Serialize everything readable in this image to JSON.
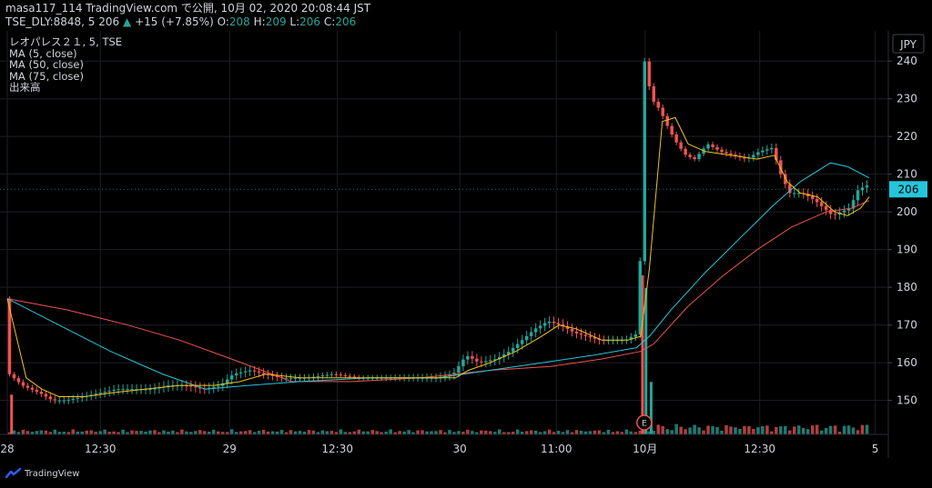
{
  "header": {
    "line1": "masa117_114 TradingView.com で公開, 10月 02, 2020 20:08:44 JST",
    "symbol": "TSE_DLY:8848, 5",
    "last": "206",
    "arrow": "▲",
    "change": "+15 (+7.85%)",
    "o_label": "O:",
    "o_val": "208",
    "h_label": "H:",
    "h_val": "209",
    "l_label": "L:",
    "l_val": "206",
    "c_label": "C:",
    "c_val": "206"
  },
  "legend": {
    "title": "レオパレス２１, 5, TSE",
    "ma5": "MA (5, close)",
    "ma50": "MA (50, close)",
    "ma75": "MA (75, close)",
    "volume": "出来高"
  },
  "axis": {
    "currency": "JPY",
    "price_tag": "206"
  },
  "footer": {
    "brand": "TradingView"
  },
  "colors": {
    "up": "#26a69a",
    "down": "#ef5350",
    "ma5": "#f0c419",
    "ma50": "#26c6da",
    "ma75": "#ef5350",
    "grid": "#1c1f27",
    "tag_bg": "#26c6da"
  },
  "chart_data": {
    "type": "candlestick",
    "y_ticks": [
      150,
      160,
      170,
      180,
      190,
      200,
      210,
      220,
      230,
      240
    ],
    "y_range": [
      141,
      248
    ],
    "x_ticks": [
      {
        "label": "28",
        "t": 0
      },
      {
        "label": "12:30",
        "t": 0.108
      },
      {
        "label": "29",
        "t": 0.258
      },
      {
        "label": "12:30",
        "t": 0.383
      },
      {
        "label": "30",
        "t": 0.525
      },
      {
        "label": "11:00",
        "t": 0.637
      },
      {
        "label": "10月",
        "t": 0.74
      },
      {
        "label": "12:30",
        "t": 0.873
      },
      {
        "label": "5",
        "t": 1.007
      }
    ],
    "earnings_marker": "E",
    "price_path": [
      [
        0,
        177
      ],
      [
        0.005,
        157
      ],
      [
        0.02,
        154
      ],
      [
        0.04,
        152
      ],
      [
        0.055,
        150
      ],
      [
        0.07,
        150
      ],
      [
        0.09,
        151
      ],
      [
        0.11,
        152
      ],
      [
        0.13,
        153
      ],
      [
        0.15,
        153
      ],
      [
        0.17,
        153
      ],
      [
        0.19,
        154
      ],
      [
        0.21,
        154
      ],
      [
        0.23,
        153
      ],
      [
        0.25,
        154
      ],
      [
        0.265,
        157
      ],
      [
        0.285,
        158
      ],
      [
        0.3,
        157
      ],
      [
        0.32,
        156
      ],
      [
        0.35,
        156
      ],
      [
        0.38,
        157
      ],
      [
        0.41,
        156
      ],
      [
        0.44,
        156
      ],
      [
        0.47,
        156
      ],
      [
        0.5,
        156
      ],
      [
        0.52,
        157
      ],
      [
        0.535,
        162
      ],
      [
        0.55,
        160
      ],
      [
        0.57,
        161
      ],
      [
        0.585,
        163
      ],
      [
        0.6,
        166
      ],
      [
        0.615,
        169
      ],
      [
        0.63,
        171
      ],
      [
        0.645,
        170
      ],
      [
        0.66,
        168
      ],
      [
        0.675,
        167
      ],
      [
        0.69,
        166
      ],
      [
        0.705,
        166
      ],
      [
        0.72,
        166
      ],
      [
        0.735,
        168
      ],
      [
        0.742,
        240
      ],
      [
        0.75,
        230
      ],
      [
        0.76,
        227
      ],
      [
        0.77,
        222
      ],
      [
        0.78,
        218
      ],
      [
        0.79,
        215
      ],
      [
        0.8,
        214
      ],
      [
        0.815,
        218
      ],
      [
        0.83,
        216
      ],
      [
        0.845,
        215
      ],
      [
        0.86,
        214
      ],
      [
        0.875,
        216
      ],
      [
        0.89,
        217
      ],
      [
        0.9,
        210
      ],
      [
        0.91,
        205
      ],
      [
        0.925,
        205
      ],
      [
        0.94,
        203
      ],
      [
        0.95,
        201
      ],
      [
        0.96,
        199
      ],
      [
        0.97,
        200
      ],
      [
        0.98,
        201
      ],
      [
        0.99,
        206
      ],
      [
        1.0,
        207
      ]
    ],
    "ma5": [
      [
        0,
        177
      ],
      [
        0.022,
        156
      ],
      [
        0.04,
        153
      ],
      [
        0.06,
        151
      ],
      [
        0.09,
        151
      ],
      [
        0.12,
        152
      ],
      [
        0.16,
        153
      ],
      [
        0.2,
        154
      ],
      [
        0.24,
        154
      ],
      [
        0.27,
        155
      ],
      [
        0.3,
        157
      ],
      [
        0.34,
        156
      ],
      [
        0.4,
        156
      ],
      [
        0.46,
        156
      ],
      [
        0.52,
        156
      ],
      [
        0.535,
        158
      ],
      [
        0.56,
        160
      ],
      [
        0.59,
        163
      ],
      [
        0.62,
        167
      ],
      [
        0.64,
        170
      ],
      [
        0.66,
        169
      ],
      [
        0.69,
        166
      ],
      [
        0.72,
        166
      ],
      [
        0.735,
        167
      ],
      [
        0.745,
        185
      ],
      [
        0.76,
        224
      ],
      [
        0.775,
        225
      ],
      [
        0.79,
        218
      ],
      [
        0.81,
        216
      ],
      [
        0.84,
        215
      ],
      [
        0.87,
        214
      ],
      [
        0.89,
        215
      ],
      [
        0.905,
        208
      ],
      [
        0.92,
        205
      ],
      [
        0.94,
        204
      ],
      [
        0.96,
        200
      ],
      [
        0.975,
        199
      ],
      [
        0.99,
        201
      ],
      [
        1.0,
        204
      ]
    ],
    "ma50": [
      [
        0,
        177
      ],
      [
        0.06,
        170
      ],
      [
        0.12,
        163
      ],
      [
        0.18,
        157
      ],
      [
        0.23,
        153
      ],
      [
        0.28,
        154
      ],
      [
        0.34,
        155
      ],
      [
        0.42,
        156
      ],
      [
        0.5,
        156
      ],
      [
        0.56,
        158
      ],
      [
        0.62,
        160
      ],
      [
        0.68,
        162
      ],
      [
        0.73,
        164
      ],
      [
        0.745,
        167
      ],
      [
        0.77,
        174
      ],
      [
        0.81,
        184
      ],
      [
        0.85,
        193
      ],
      [
        0.89,
        202
      ],
      [
        0.92,
        208
      ],
      [
        0.955,
        213
      ],
      [
        0.975,
        212
      ],
      [
        1.0,
        209
      ]
    ],
    "ma75": [
      [
        0,
        177
      ],
      [
        0.07,
        174
      ],
      [
        0.14,
        170
      ],
      [
        0.2,
        166
      ],
      [
        0.26,
        161
      ],
      [
        0.33,
        155
      ],
      [
        0.4,
        155
      ],
      [
        0.48,
        156
      ],
      [
        0.56,
        158
      ],
      [
        0.63,
        159
      ],
      [
        0.69,
        161
      ],
      [
        0.735,
        163
      ],
      [
        0.75,
        165
      ],
      [
        0.79,
        175
      ],
      [
        0.83,
        183
      ],
      [
        0.87,
        190
      ],
      [
        0.91,
        196
      ],
      [
        0.95,
        200
      ],
      [
        0.98,
        201
      ],
      [
        1.0,
        203
      ]
    ],
    "volume_spikes": [
      {
        "t": 0.005,
        "v": 0.25,
        "up": false
      },
      {
        "t": 0.737,
        "v": 1.0,
        "up": false
      },
      {
        "t": 0.741,
        "v": 0.92,
        "up": true
      },
      {
        "t": 0.747,
        "v": 0.33,
        "up": true
      }
    ]
  }
}
